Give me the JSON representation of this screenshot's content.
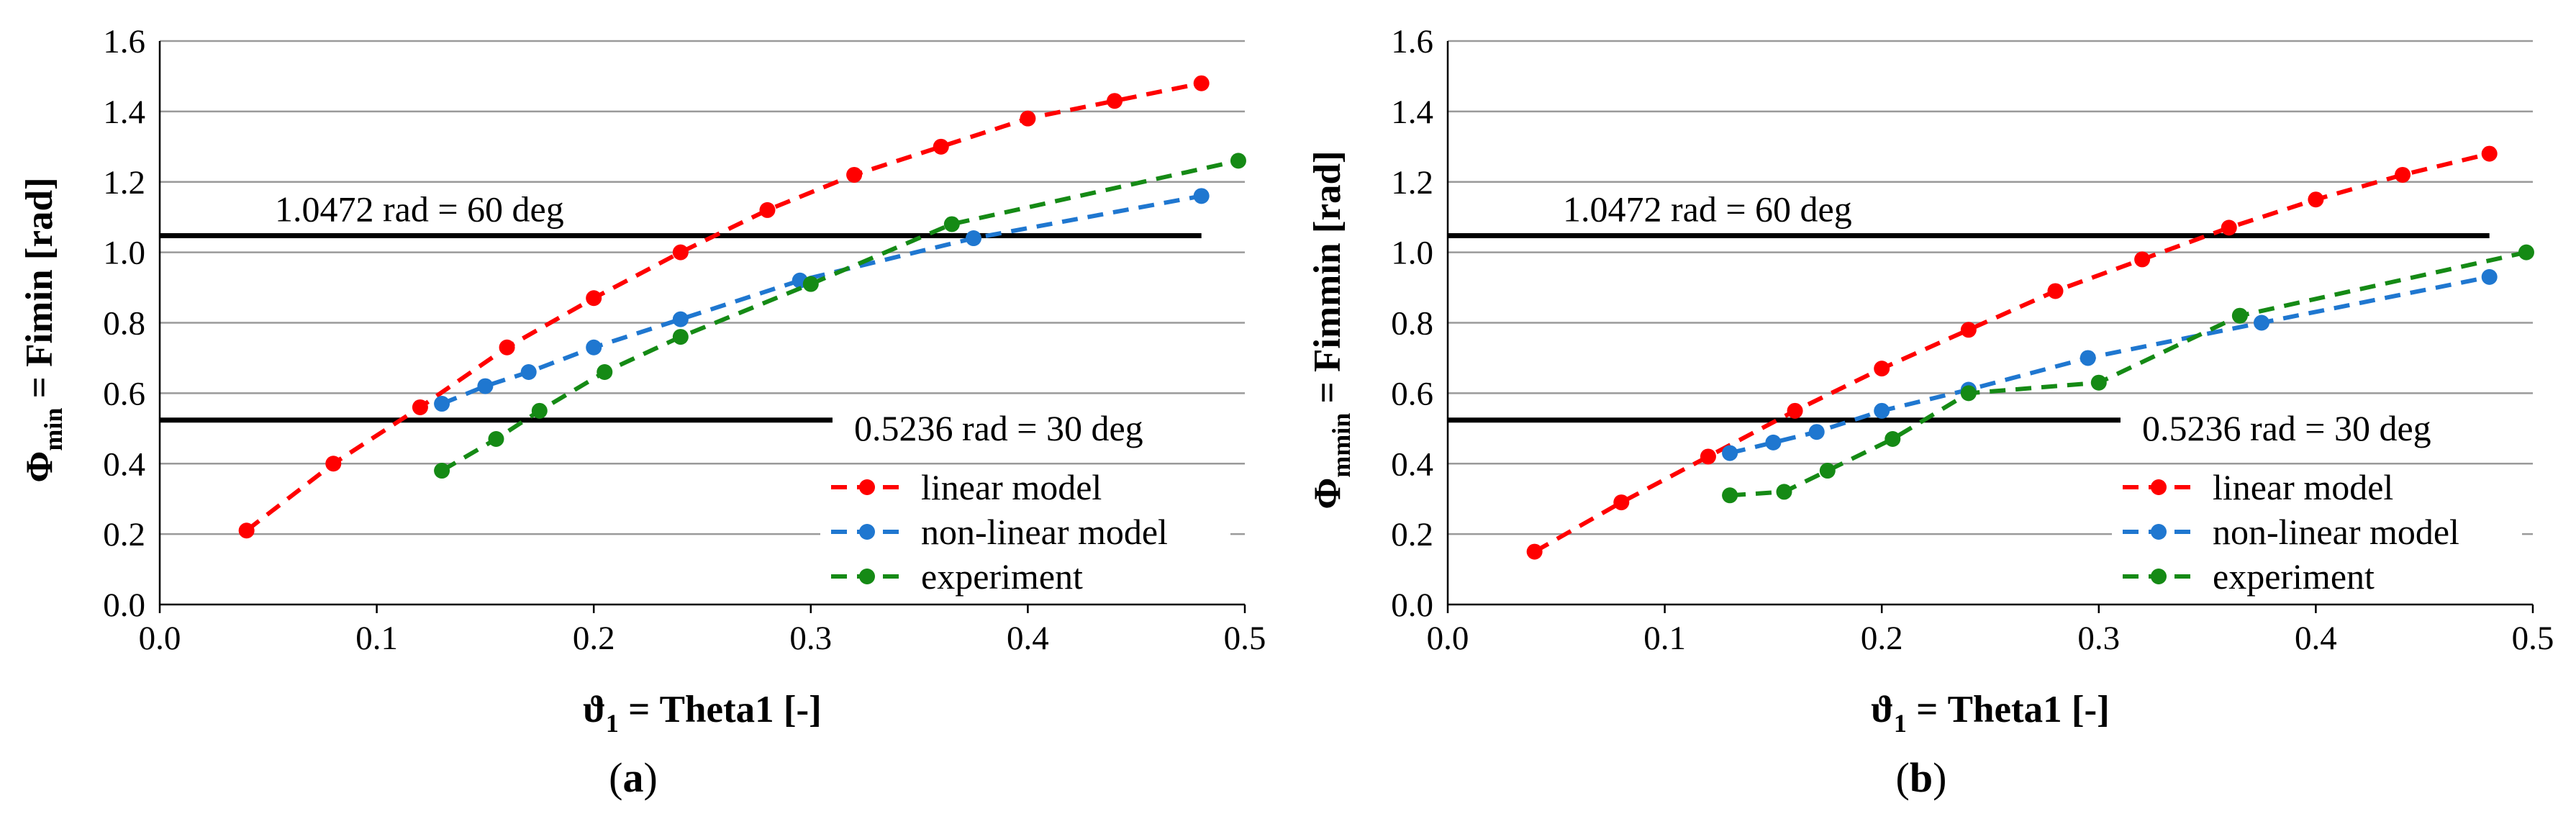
{
  "colors": {
    "linear": "#ff0000",
    "nonlinear": "#1f77d0",
    "experiment": "#158a15",
    "grid": "#9a9a9a",
    "refline": "#000000",
    "axis": "#000000"
  },
  "chart_data": [
    {
      "type": "line",
      "panel": "a",
      "caption_open": "(",
      "caption_letter": "a",
      "caption_close": ")",
      "xlabel_sym": "ϑ",
      "xlabel_sub": "1",
      "xlabel_rest": " = Theta1 [-]",
      "ylabel_sym": "Φ",
      "ylabel_sub": "min",
      "ylabel_rest": " = Fimin [rad]",
      "xlim": [
        0,
        0.5
      ],
      "ylim": [
        0,
        1.6
      ],
      "xticks": [
        "0.0",
        "0.1",
        "0.2",
        "0.3",
        "0.4",
        "0.5"
      ],
      "yticks": [
        "0.0",
        "0.2",
        "0.4",
        "0.6",
        "0.8",
        "1.0",
        "1.2",
        "1.4",
        "1.6"
      ],
      "xtick_values": [
        0,
        0.1,
        0.2,
        0.3,
        0.4,
        0.5
      ],
      "ytick_values": [
        0,
        0.2,
        0.4,
        0.6,
        0.8,
        1.0,
        1.2,
        1.4,
        1.6
      ],
      "grid": true,
      "legend_position": "bottom-right",
      "reference_lines": [
        {
          "y": 1.0472,
          "x_range": [
            0,
            0.48
          ],
          "label": "1.0472 rad = 60 deg",
          "label_side": "above-left"
        },
        {
          "y": 0.5236,
          "x_range": [
            0,
            0.31
          ],
          "label": "0.5236 rad = 30 deg",
          "label_side": "right"
        }
      ],
      "series": [
        {
          "key": "linear",
          "name": "linear model",
          "x": [
            0.04,
            0.08,
            0.12,
            0.16,
            0.2,
            0.24,
            0.28,
            0.32,
            0.36,
            0.4,
            0.44,
            0.48
          ],
          "y": [
            0.21,
            0.4,
            0.56,
            0.73,
            0.87,
            1.0,
            1.12,
            1.22,
            1.3,
            1.38,
            1.43,
            1.48
          ]
        },
        {
          "key": "nonlinear",
          "name": "non-linear model",
          "x": [
            0.13,
            0.15,
            0.17,
            0.2,
            0.24,
            0.295,
            0.375,
            0.48
          ],
          "y": [
            0.57,
            0.62,
            0.66,
            0.73,
            0.81,
            0.92,
            1.04,
            1.16
          ]
        },
        {
          "key": "experiment",
          "name": "experiment",
          "x": [
            0.13,
            0.155,
            0.175,
            0.205,
            0.24,
            0.3,
            0.365,
            0.497
          ],
          "y": [
            0.38,
            0.47,
            0.55,
            0.66,
            0.76,
            0.91,
            1.08,
            1.26
          ]
        }
      ]
    },
    {
      "type": "line",
      "panel": "b",
      "caption_open": "(",
      "caption_letter": "b",
      "caption_close": ")",
      "xlabel_sym": "ϑ",
      "xlabel_sub": "1",
      "xlabel_rest": " = Theta1 [-]",
      "ylabel_sym": "Φ",
      "ylabel_sub": "mmin",
      "ylabel_rest": " = Fimmin [rad]",
      "xlim": [
        0,
        0.5
      ],
      "ylim": [
        0,
        1.6
      ],
      "xticks": [
        "0.0",
        "0.1",
        "0.2",
        "0.3",
        "0.4",
        "0.5"
      ],
      "yticks": [
        "0.0",
        "0.2",
        "0.4",
        "0.6",
        "0.8",
        "1.0",
        "1.2",
        "1.4",
        "1.6"
      ],
      "xtick_values": [
        0,
        0.1,
        0.2,
        0.3,
        0.4,
        0.5
      ],
      "ytick_values": [
        0,
        0.2,
        0.4,
        0.6,
        0.8,
        1.0,
        1.2,
        1.4,
        1.6
      ],
      "grid": true,
      "legend_position": "bottom-right",
      "reference_lines": [
        {
          "y": 1.0472,
          "x_range": [
            0,
            0.48
          ],
          "label": "1.0472 rad = 60 deg",
          "label_side": "above-left"
        },
        {
          "y": 0.5236,
          "x_range": [
            0,
            0.31
          ],
          "label": "0.5236 rad = 30 deg",
          "label_side": "right"
        }
      ],
      "series": [
        {
          "key": "linear",
          "name": "linear model",
          "x": [
            0.04,
            0.08,
            0.12,
            0.16,
            0.2,
            0.24,
            0.28,
            0.32,
            0.36,
            0.4,
            0.44,
            0.48
          ],
          "y": [
            0.15,
            0.29,
            0.42,
            0.55,
            0.67,
            0.78,
            0.89,
            0.98,
            1.07,
            1.15,
            1.22,
            1.28
          ]
        },
        {
          "key": "nonlinear",
          "name": "non-linear model",
          "x": [
            0.13,
            0.15,
            0.17,
            0.2,
            0.24,
            0.295,
            0.375,
            0.48
          ],
          "y": [
            0.43,
            0.46,
            0.49,
            0.55,
            0.61,
            0.7,
            0.8,
            0.93
          ]
        },
        {
          "key": "experiment",
          "name": "experiment",
          "x": [
            0.13,
            0.155,
            0.175,
            0.205,
            0.24,
            0.3,
            0.365,
            0.497
          ],
          "y": [
            0.31,
            0.32,
            0.38,
            0.47,
            0.6,
            0.63,
            0.82,
            1.0
          ]
        }
      ]
    }
  ]
}
